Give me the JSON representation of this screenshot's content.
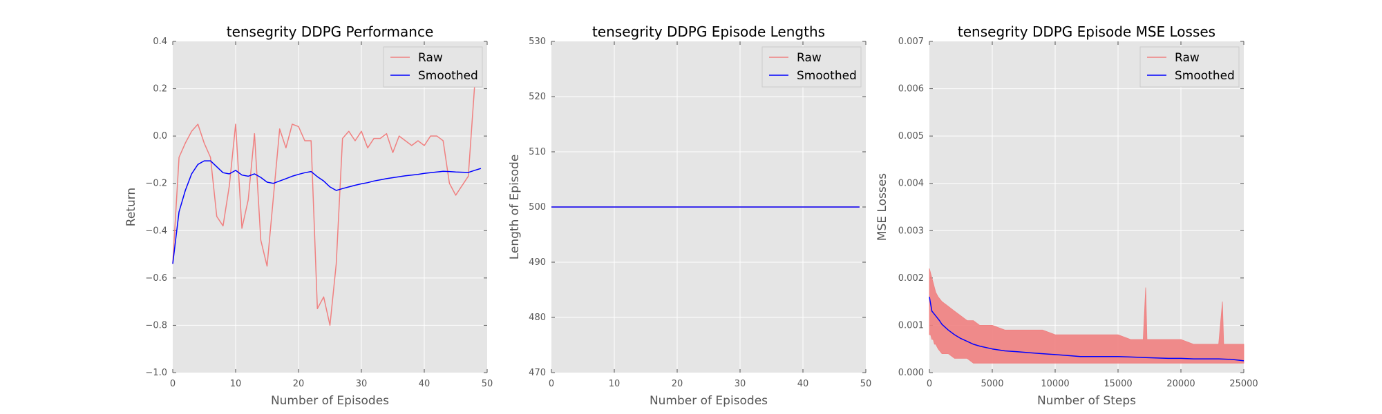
{
  "chart_data": [
    {
      "type": "line",
      "title": "tensegrity DDPG Performance",
      "xlabel": "Number of Episodes",
      "ylabel": "Return",
      "xlim": [
        0,
        50
      ],
      "ylim": [
        -1.0,
        0.4
      ],
      "xticks": [
        0,
        10,
        20,
        30,
        40,
        50
      ],
      "yticks": [
        -1.0,
        -0.8,
        -0.6,
        -0.4,
        -0.2,
        0.0,
        0.2,
        0.4
      ],
      "ytick_labels": [
        "−1.0",
        "−0.8",
        "−0.6",
        "−0.4",
        "−0.2",
        "0.0",
        "0.2",
        "0.4"
      ],
      "grid": true,
      "legend": "upper-right",
      "series": [
        {
          "name": "Raw",
          "color": "#f08080",
          "x": [
            0,
            1,
            2,
            3,
            4,
            5,
            6,
            7,
            8,
            9,
            10,
            11,
            12,
            13,
            14,
            15,
            16,
            17,
            18,
            19,
            20,
            21,
            22,
            23,
            24,
            25,
            26,
            27,
            28,
            29,
            30,
            31,
            32,
            33,
            34,
            35,
            36,
            37,
            38,
            39,
            40,
            41,
            42,
            43,
            44,
            45,
            46,
            47,
            48
          ],
          "values": [
            -0.54,
            -0.09,
            -0.03,
            0.02,
            0.05,
            -0.03,
            -0.09,
            -0.34,
            -0.38,
            -0.21,
            0.05,
            -0.39,
            -0.27,
            0.01,
            -0.44,
            -0.55,
            -0.26,
            0.03,
            -0.05,
            0.05,
            0.04,
            -0.02,
            -0.02,
            -0.73,
            -0.68,
            -0.8,
            -0.54,
            -0.01,
            0.02,
            -0.02,
            0.02,
            -0.05,
            -0.01,
            -0.01,
            0.01,
            -0.07,
            0.0,
            -0.02,
            -0.04,
            -0.02,
            -0.04,
            0.0,
            0.0,
            -0.02,
            -0.2,
            -0.25,
            -0.21,
            -0.17,
            0.21
          ]
        },
        {
          "name": "Smoothed",
          "color": "#0000ff",
          "x": [
            0,
            1,
            2,
            3,
            4,
            5,
            6,
            7,
            8,
            9,
            10,
            11,
            12,
            13,
            14,
            15,
            16,
            17,
            18,
            19,
            20,
            21,
            22,
            23,
            24,
            25,
            26,
            27,
            28,
            29,
            30,
            31,
            32,
            33,
            34,
            35,
            36,
            37,
            38,
            39,
            40,
            41,
            42,
            43,
            44,
            45,
            46,
            47,
            48,
            49
          ],
          "values": [
            -0.54,
            -0.32,
            -0.23,
            -0.16,
            -0.12,
            -0.105,
            -0.105,
            -0.13,
            -0.155,
            -0.16,
            -0.145,
            -0.165,
            -0.17,
            -0.16,
            -0.175,
            -0.195,
            -0.2,
            -0.19,
            -0.18,
            -0.17,
            -0.162,
            -0.155,
            -0.15,
            -0.172,
            -0.19,
            -0.215,
            -0.23,
            -0.222,
            -0.215,
            -0.208,
            -0.202,
            -0.197,
            -0.19,
            -0.185,
            -0.18,
            -0.176,
            -0.172,
            -0.168,
            -0.165,
            -0.162,
            -0.158,
            -0.155,
            -0.152,
            -0.149,
            -0.15,
            -0.152,
            -0.153,
            -0.154,
            -0.145,
            -0.137
          ]
        }
      ]
    },
    {
      "type": "line",
      "title": "tensegrity DDPG Episode Lengths",
      "xlabel": "Number of Episodes",
      "ylabel": "Length of Episode",
      "xlim": [
        0,
        50
      ],
      "ylim": [
        470,
        530
      ],
      "xticks": [
        0,
        10,
        20,
        30,
        40,
        50
      ],
      "yticks": [
        470,
        480,
        490,
        500,
        510,
        520,
        530
      ],
      "ytick_labels": [
        "470",
        "480",
        "490",
        "500",
        "510",
        "520",
        "530"
      ],
      "grid": true,
      "legend": "upper-right",
      "series": [
        {
          "name": "Raw",
          "color": "#f08080",
          "x": [
            0,
            49
          ],
          "values": [
            500,
            500
          ]
        },
        {
          "name": "Smoothed",
          "color": "#0000ff",
          "x": [
            0,
            49
          ],
          "values": [
            500,
            500
          ]
        }
      ]
    },
    {
      "type": "line",
      "title": "tensegrity DDPG Episode MSE Losses",
      "xlabel": "Number of Steps",
      "ylabel": "MSE Losses",
      "xlim": [
        0,
        25000
      ],
      "ylim": [
        0.0,
        0.007
      ],
      "xticks": [
        0,
        5000,
        10000,
        15000,
        20000,
        25000
      ],
      "yticks": [
        0.0,
        0.001,
        0.002,
        0.003,
        0.004,
        0.005,
        0.006,
        0.007
      ],
      "ytick_labels": [
        "0.000",
        "0.001",
        "0.002",
        "0.003",
        "0.004",
        "0.005",
        "0.006",
        "0.007"
      ],
      "grid": true,
      "legend": "upper-right",
      "series": [
        {
          "name": "Raw",
          "color": "#f08080",
          "x": [
            0,
            100,
            200,
            300,
            400,
            500,
            700,
            1000,
            1500,
            2000,
            2500,
            3000,
            3500,
            4000,
            5000,
            6000,
            7000,
            8000,
            9000,
            10000,
            11000,
            12000,
            13000,
            14000,
            15000,
            16000,
            17000,
            17200,
            17300,
            18000,
            19000,
            20000,
            21000,
            22000,
            23000,
            23300,
            23400,
            24000,
            25000
          ],
          "upper": [
            0.0022,
            0.0021,
            0.002,
            0.0019,
            0.0018,
            0.0017,
            0.0016,
            0.0015,
            0.0014,
            0.0013,
            0.0012,
            0.0011,
            0.0011,
            0.001,
            0.001,
            0.0009,
            0.0009,
            0.0009,
            0.0009,
            0.0008,
            0.0008,
            0.0008,
            0.0008,
            0.0008,
            0.0008,
            0.0007,
            0.0007,
            0.0018,
            0.0007,
            0.0007,
            0.0007,
            0.0007,
            0.0006,
            0.0006,
            0.0006,
            0.0015,
            0.0006,
            0.0006,
            0.0006
          ],
          "lower": [
            0.0008,
            0.0008,
            0.0007,
            0.0007,
            0.0006,
            0.0006,
            0.0005,
            0.0004,
            0.0004,
            0.0003,
            0.0003,
            0.0003,
            0.0002,
            0.0002,
            0.0002,
            0.0002,
            0.0002,
            0.0002,
            0.0002,
            0.0002,
            0.0002,
            0.0002,
            0.0002,
            0.0002,
            0.0002,
            0.0002,
            0.0002,
            0.0002,
            0.0002,
            0.0002,
            0.0002,
            0.0002,
            0.0002,
            0.0002,
            0.0002,
            0.0002,
            0.0002,
            0.0002,
            0.0002
          ]
        },
        {
          "name": "Smoothed",
          "color": "#0000ff",
          "x": [
            0,
            200,
            500,
            800,
            1000,
            1500,
            2000,
            2500,
            3000,
            3500,
            4000,
            5000,
            6000,
            7000,
            8000,
            9000,
            10000,
            11000,
            12000,
            13000,
            14000,
            15000,
            16000,
            17000,
            18000,
            19000,
            20000,
            21000,
            22000,
            23000,
            24000,
            25000
          ],
          "values": [
            0.0016,
            0.0013,
            0.0012,
            0.0011,
            0.00102,
            0.0009,
            0.0008,
            0.00072,
            0.00066,
            0.0006,
            0.00056,
            0.0005,
            0.00046,
            0.00044,
            0.00042,
            0.0004,
            0.00038,
            0.00036,
            0.00034,
            0.00034,
            0.00034,
            0.00034,
            0.00033,
            0.00032,
            0.00031,
            0.0003,
            0.0003,
            0.00029,
            0.00029,
            0.00029,
            0.00028,
            0.00025
          ]
        }
      ]
    }
  ]
}
